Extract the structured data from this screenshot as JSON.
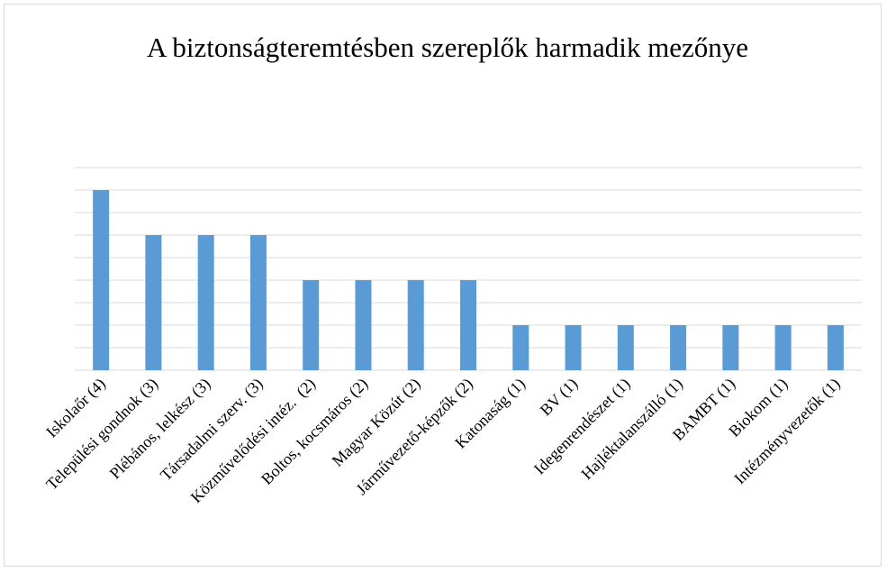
{
  "chart_data": {
    "type": "bar",
    "title": "A biztonságteremtésben szereplők harmadik mezőnye",
    "categories": [
      "Iskolaőr (4)",
      "Települési gondnok (3)",
      "Plébános, lelkész (3)",
      "Társadalmi szerv. (3)",
      "Közművelődési intéz.  (2)",
      "Boltos, kocsmáros (2)",
      "Magyar Közút (2)",
      "Járművezető-képzők (2)",
      "Katonaság (1)",
      "BV (1)",
      "Idegenrendészet (1)",
      "Hajléktalanszálló (1)",
      "BAMBT (1)",
      "Biokom (1)",
      "Intézményvezetők (1)"
    ],
    "values": [
      4,
      3,
      3,
      3,
      2,
      2,
      2,
      2,
      1,
      1,
      1,
      1,
      1,
      1,
      1
    ],
    "color": "#5b9bd5",
    "ylim": [
      0,
      4.5
    ],
    "yticks": [
      0,
      0.5,
      1,
      1.5,
      2,
      2.5,
      3,
      3.5,
      4,
      4.5
    ],
    "grid": true
  }
}
